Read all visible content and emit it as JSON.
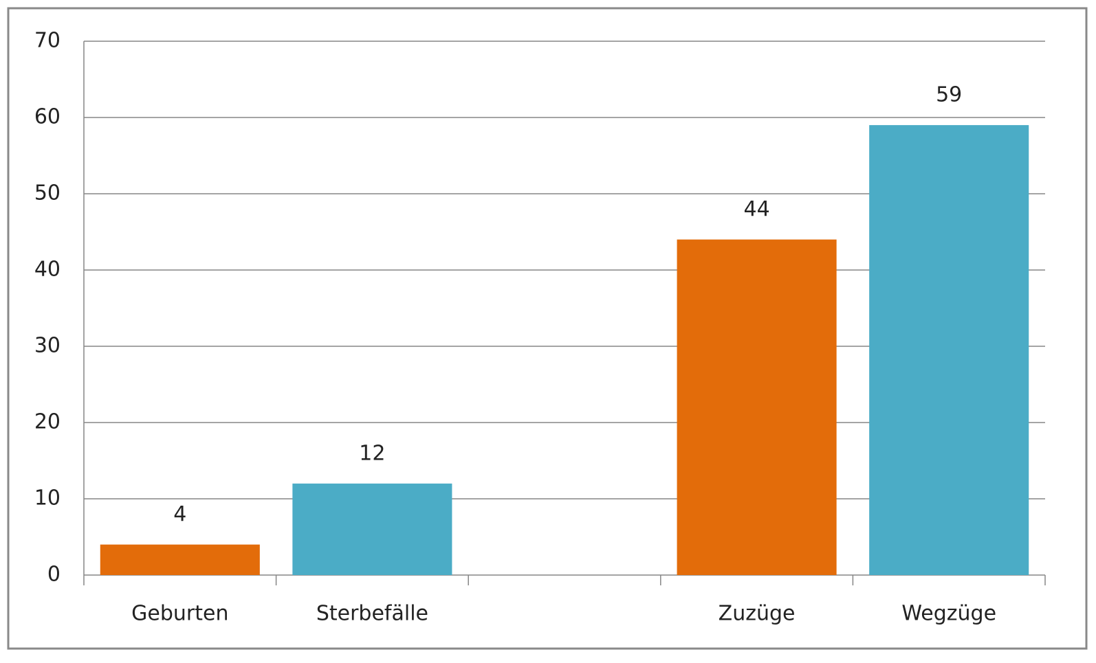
{
  "chart_data": {
    "type": "bar",
    "categories": [
      "Geburten",
      "Sterbefälle",
      null,
      "Zuzüge",
      "Wegzüge"
    ],
    "values": [
      4,
      12,
      null,
      44,
      59
    ],
    "colors": [
      "#e36c0a",
      "#4bacc6",
      null,
      "#e36c0a",
      "#4bacc6"
    ],
    "ylim": [
      0,
      70
    ],
    "yticks": [
      0,
      10,
      20,
      30,
      40,
      50,
      60,
      70
    ],
    "grid": true,
    "data_labels": true
  }
}
